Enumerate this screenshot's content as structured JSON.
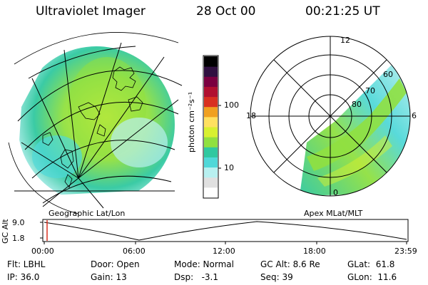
{
  "header": {
    "title": "Ultraviolet Imager",
    "date": "28 Oct 00",
    "time": "00:21:25 UT"
  },
  "colorbar": {
    "unit_label": "photon cm⁻²s⁻¹",
    "ticks": [
      "100",
      "10"
    ],
    "scale": "log",
    "colors": [
      "#ffffff",
      "#e0e0e0",
      "#b8f0f0",
      "#50d8d8",
      "#30c8a0",
      "#90e040",
      "#d8f030",
      "#ffe060",
      "#f0a020",
      "#d83020",
      "#b01030",
      "#7a0040",
      "#301040",
      "#000000"
    ]
  },
  "panel_left": {
    "label": "Geographic Lat/Lon"
  },
  "panel_right": {
    "label": "Apex  MLat/MLT",
    "mlt_labels": {
      "top": "12",
      "right": "6",
      "bottom": "0",
      "left": "18"
    },
    "mlat_labels": [
      "80",
      "70",
      "60"
    ]
  },
  "altitude_plot": {
    "ylabel": "GC Alt",
    "yticks": [
      "9.0",
      "1.8"
    ],
    "xticks": [
      "00:00",
      "06:00",
      "12:00",
      "18:00",
      "23:59"
    ]
  },
  "status": {
    "row1": [
      "Flt: LBHL",
      "Door: Open",
      "Mode: Normal",
      "GC Alt: 8.6 Re",
      "GLat:  61.8"
    ],
    "row2": [
      "IP: 36.0",
      "Gain: 13",
      "Dsp:   -3.1",
      "Seq: 39",
      "GLon:  11.6"
    ]
  },
  "accent_colors": {
    "aurora_green": "#90e040",
    "aurora_cyan": "#50d8d8",
    "cursor_red": "#d83020"
  }
}
